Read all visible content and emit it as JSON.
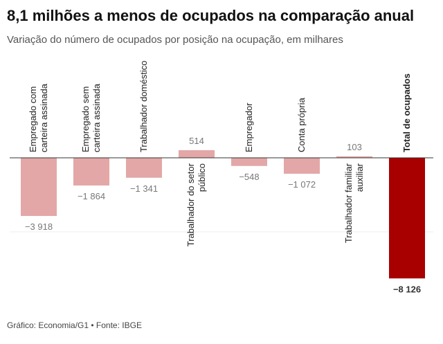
{
  "chart_data": {
    "type": "bar",
    "title": "8,1 milhões a menos de ocupados na comparação anual",
    "subtitle": "Variação do número de ocupados por posição na ocupação, em milhares",
    "source": "Gráfico: Economia/G1 • Fonte: IBGE",
    "categories": [
      "Empregado com\ncarteira assinada",
      "Empregado sem\ncarteira assinada",
      "Trabalhador doméstico",
      "Trabalhador do setor\npúblico",
      "Empregador",
      "Conta própria",
      "Trabalhador familiar\nauxiliar",
      "Total de ocupados"
    ],
    "values": [
      -3918,
      -1864,
      -1341,
      514,
      -548,
      -1072,
      103,
      -8126
    ],
    "value_labels": [
      "−3 918",
      "−1 864",
      "−1 341",
      "514",
      "−548",
      "−1 072",
      "103",
      "−8 126"
    ],
    "colors": [
      "#e3a7a7",
      "#e3a7a7",
      "#e3a7a7",
      "#e3a7a7",
      "#e3a7a7",
      "#e3a7a7",
      "#e3a7a7",
      "#a80000"
    ],
    "ylim": [
      -8800,
      6700
    ]
  }
}
